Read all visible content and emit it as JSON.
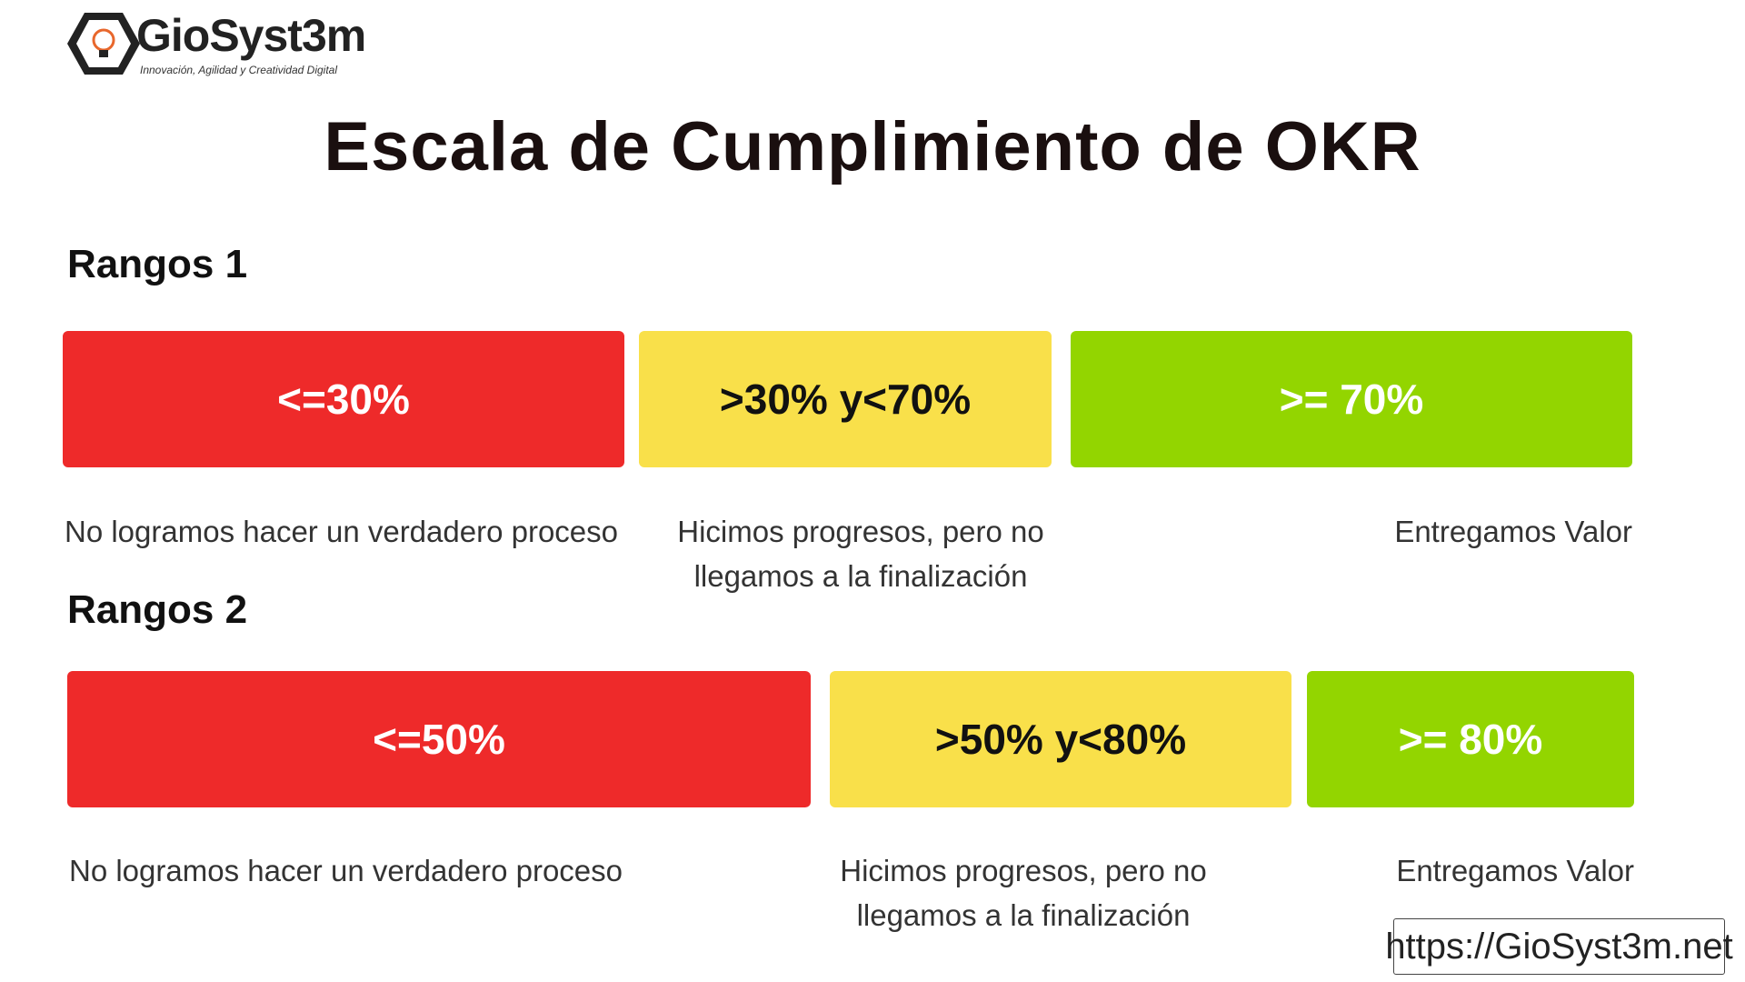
{
  "logo": {
    "name": "GioSyst3m",
    "tagline": "Innovación, Agilidad y Creatividad Digital"
  },
  "title": "Escala de Cumplimiento de OKR",
  "sections": [
    {
      "label": "Rangos 1",
      "ranges": [
        {
          "label": "<=30%",
          "description": "No logramos hacer un verdadero proceso",
          "color": "#ee2a2a"
        },
        {
          "label": ">30% y<70%",
          "description": "Hicimos progresos, pero no llegamos a la finalización",
          "color": "#f9e04a"
        },
        {
          "label": ">= 70%",
          "description": "Entregamos Valor",
          "color": "#93d500"
        }
      ]
    },
    {
      "label": "Rangos 2",
      "ranges": [
        {
          "label": "<=50%",
          "description": "No logramos hacer un verdadero proceso",
          "color": "#ee2a2a"
        },
        {
          "label": ">50% y<80%",
          "description": "Hicimos progresos, pero no llegamos a la finalización",
          "color": "#f9e04a"
        },
        {
          "label": ">= 80%",
          "description": "Entregamos Valor",
          "color": "#93d500"
        }
      ]
    }
  ],
  "url": "https://GioSyst3m.net"
}
